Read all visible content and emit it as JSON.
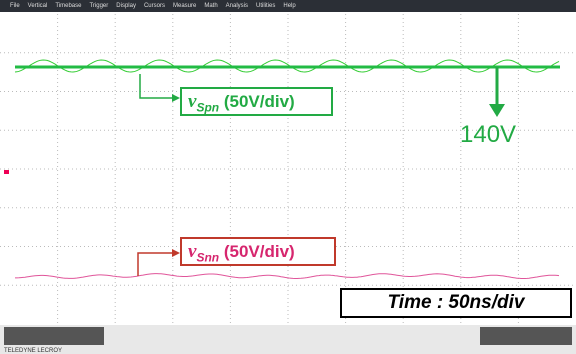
{
  "menu": [
    "File",
    "Vertical",
    "Timebase",
    "Trigger",
    "Display",
    "Cursors",
    "Measure",
    "Math",
    "Analysis",
    "Utilities",
    "Help"
  ],
  "annotations": {
    "spn": {
      "symbol": "v",
      "subscript": "Spn",
      "scale": "(50V/div)"
    },
    "level": "140V",
    "snn": {
      "symbol": "v",
      "subscript": "Snn",
      "scale": "(50V/div)"
    },
    "time": "Time : 50ns/div"
  },
  "status": {
    "brand": "TELEDYNE LECROY"
  }
}
